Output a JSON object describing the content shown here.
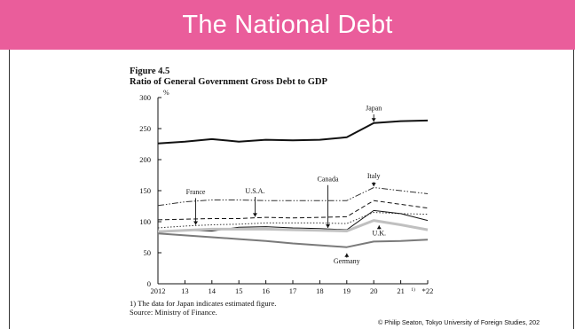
{
  "slide": {
    "title": "The National Debt",
    "credit": "© Philip Seaton, Tokyo University of Foreign Studies, 202"
  },
  "figure": {
    "label": "Figure 4.5",
    "title": "Ratio of General Government Gross Debt to GDP",
    "note": "1) The data for Japan indicates estimated figure.",
    "source": "Source:  Ministry of Finance."
  },
  "chart_data": {
    "type": "line",
    "ylabel": "%",
    "xlabel": "",
    "ylim": [
      0,
      300
    ],
    "yticks": [
      0,
      50,
      100,
      150,
      200,
      250,
      300
    ],
    "x": [
      2012,
      2013,
      2014,
      2015,
      2016,
      2017,
      2018,
      2019,
      2020,
      2021,
      2022
    ],
    "xtick_labels": [
      "2012",
      "13",
      "14",
      "15",
      "16",
      "17",
      "18",
      "19",
      "20",
      "21",
      "*22"
    ],
    "xtick_superscripts": {
      "21": "1)"
    },
    "grid": false,
    "series": [
      {
        "name": "Japan",
        "color": "#111111",
        "style": "solid-thick",
        "values": [
          226,
          229,
          233,
          229,
          232,
          231,
          232,
          236,
          259,
          262,
          263
        ]
      },
      {
        "name": "Italy",
        "color": "#333333",
        "style": "dash-dot-dot",
        "values": [
          126,
          132,
          135,
          135,
          134,
          134,
          134,
          134,
          155,
          150,
          145
        ]
      },
      {
        "name": "U.S.A.",
        "color": "#111111",
        "style": "dashed",
        "values": [
          103,
          104,
          105,
          105,
          107,
          106,
          107,
          108,
          134,
          128,
          122
        ]
      },
      {
        "name": "France",
        "color": "#333333",
        "style": "dotted",
        "values": [
          90,
          93,
          95,
          96,
          98,
          98,
          98,
          97,
          115,
          113,
          112
        ]
      },
      {
        "name": "Canada",
        "color": "#111111",
        "style": "solid",
        "values": [
          85,
          86,
          85,
          91,
          92,
          90,
          89,
          87,
          118,
          113,
          102
        ]
      },
      {
        "name": "U.K.",
        "color": "#c0c0c0",
        "style": "solid-thick",
        "values": [
          84,
          86,
          88,
          88,
          88,
          87,
          86,
          85,
          102,
          95,
          87
        ]
      },
      {
        "name": "Germany",
        "color": "#7a7a7a",
        "style": "solid-thick",
        "values": [
          81,
          78,
          75,
          72,
          69,
          65,
          62,
          59,
          68,
          69,
          71
        ]
      }
    ],
    "annotations": [
      {
        "text": "Japan",
        "series": "Japan"
      },
      {
        "text": "Italy",
        "series": "Italy"
      },
      {
        "text": "U.S.A.",
        "series": "U.S.A."
      },
      {
        "text": "France",
        "series": "France"
      },
      {
        "text": "Canada",
        "series": "Canada"
      },
      {
        "text": "U.K.",
        "series": "U.K."
      },
      {
        "text": "Germany",
        "series": "Germany"
      }
    ]
  }
}
